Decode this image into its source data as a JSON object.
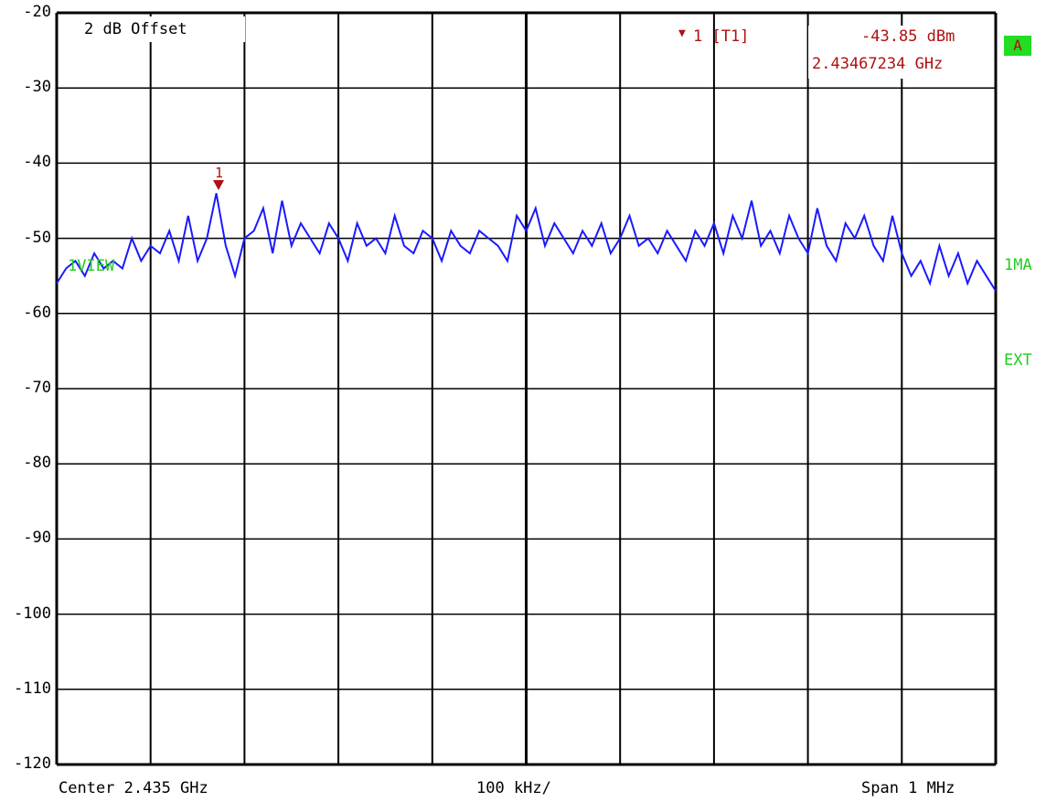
{
  "window": {
    "offset_label": "2 dB Offset",
    "marker_header": "1 [T1]",
    "marker_level": "-43.85 dBm",
    "marker_freq": "2.43467234 GHz",
    "marker_symbol": "▼",
    "trace_badge": "A",
    "side_label_1": "1MA",
    "side_label_2": "EXT",
    "trace_tag": "1VIEW",
    "marker_number": "1",
    "center_label": "Center 2.435 GHz",
    "div_label": "100 kHz/",
    "span_label": "Span 1 MHz"
  },
  "colors": {
    "trace": "#1a1aff",
    "marker": "#b01010",
    "annotation_green": "#22cc22",
    "grid": "#000000"
  },
  "chart_data": {
    "type": "line",
    "title": "",
    "xlabel": "",
    "ylabel": "",
    "x_unit": "GHz",
    "xlim": [
      2.4345,
      2.4355
    ],
    "ylim": [
      -120,
      -20
    ],
    "yticks": [
      -20,
      -30,
      -40,
      -50,
      -60,
      -70,
      -80,
      -90,
      -100,
      -110,
      -120
    ],
    "grid": true,
    "marker": {
      "x": 2.43467234,
      "y": -43.85
    },
    "series": [
      {
        "values_x": [
          2.4345,
          2.43451,
          2.43452,
          2.43453,
          2.43454,
          2.43455,
          2.43456,
          2.43457,
          2.43458,
          2.43459,
          2.4346,
          2.43461,
          2.43462,
          2.43463,
          2.43464,
          2.43465,
          2.43466,
          2.43467,
          2.43468,
          2.43469,
          2.4347,
          2.43471,
          2.43472,
          2.43473,
          2.43474,
          2.43475,
          2.43476,
          2.43477,
          2.43478,
          2.43479,
          2.4348,
          2.43481,
          2.43482,
          2.43483,
          2.43484,
          2.43485,
          2.43486,
          2.43487,
          2.43488,
          2.43489,
          2.4349,
          2.43491,
          2.43492,
          2.43493,
          2.43494,
          2.43495,
          2.43496,
          2.43497,
          2.43498,
          2.43499,
          2.435,
          2.43501,
          2.43502,
          2.43503,
          2.43504,
          2.43505,
          2.43506,
          2.43507,
          2.43508,
          2.43509,
          2.4351,
          2.43511,
          2.43512,
          2.43513,
          2.43514,
          2.43515,
          2.43516,
          2.43517,
          2.43518,
          2.43519,
          2.4352,
          2.43521,
          2.43522,
          2.43523,
          2.43524,
          2.43525,
          2.43526,
          2.43527,
          2.43528,
          2.43529,
          2.4353,
          2.43531,
          2.43532,
          2.43533,
          2.43534,
          2.43535,
          2.43536,
          2.43537,
          2.43538,
          2.43539,
          2.4354,
          2.43541,
          2.43542,
          2.43543,
          2.43544,
          2.43545,
          2.43546,
          2.43547,
          2.43548,
          2.43549,
          2.4355
        ],
        "values": [
          -56,
          -54,
          -53,
          -55,
          -52,
          -54,
          -53,
          -54,
          -50,
          -53,
          -51,
          -52,
          -49,
          -53,
          -47,
          -53,
          -50,
          -44,
          -51,
          -55,
          -50,
          -49,
          -46,
          -52,
          -45,
          -51,
          -48,
          -50,
          -52,
          -48,
          -50,
          -53,
          -48,
          -51,
          -50,
          -52,
          -47,
          -51,
          -52,
          -49,
          -50,
          -53,
          -49,
          -51,
          -52,
          -49,
          -50,
          -51,
          -53,
          -47,
          -49,
          -46,
          -51,
          -48,
          -50,
          -52,
          -49,
          -51,
          -48,
          -52,
          -50,
          -47,
          -51,
          -50,
          -52,
          -49,
          -51,
          -53,
          -49,
          -51,
          -48,
          -52,
          -47,
          -50,
          -45,
          -51,
          -49,
          -52,
          -47,
          -50,
          -52,
          -46,
          -51,
          -53,
          -48,
          -50,
          -47,
          -51,
          -53,
          -47,
          -52,
          -55,
          -53,
          -56,
          -51,
          -55,
          -52,
          -56,
          -53,
          -55,
          -57
        ]
      }
    ]
  }
}
